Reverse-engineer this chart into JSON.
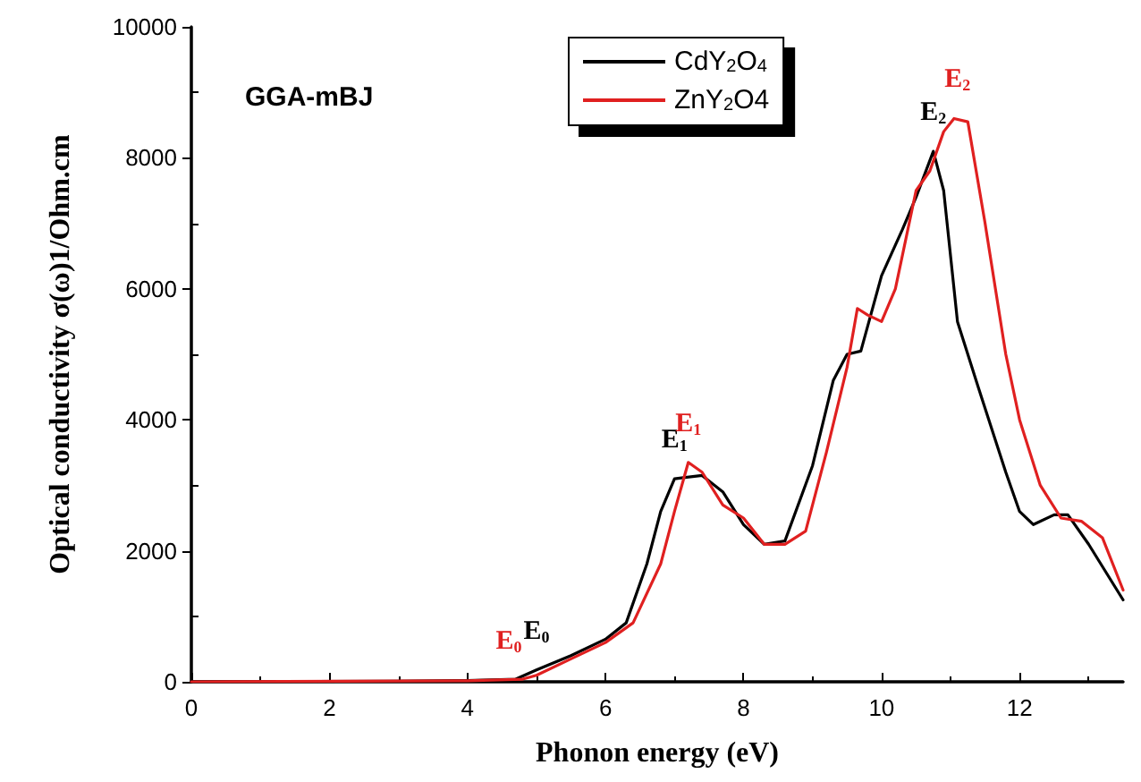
{
  "chart_data": {
    "type": "line",
    "xlabel": "Phonon energy (eV)",
    "ylabel": "Optical conductivity σ(ω)1/Ohm.cm",
    "xlim": [
      0,
      13.5
    ],
    "xticks": [
      0,
      2,
      4,
      6,
      8,
      10,
      12
    ],
    "ylim": [
      0,
      10000
    ],
    "yticks": [
      0,
      2000,
      4000,
      6000,
      8000,
      10000
    ],
    "grid": false,
    "legend": "top",
    "marker": "none",
    "line_style": "solid",
    "annotations": [
      "GGA-mBJ",
      {
        "text": "E$_{0}$",
        "x": 5.0,
        "y": 180
      },
      {
        "text": "E$_{0}$",
        "x": 4.6,
        "y": 33
      },
      {
        "text": "E$_{1}$",
        "x": 7.0,
        "y": 3100
      },
      {
        "text": "E$_{1}$",
        "x": 7.2,
        "y": 3350
      },
      {
        "text": "E$_{2}$",
        "x": 10.75,
        "y": 8100
      },
      {
        "text": "E$_{2}$",
        "x": 11.1,
        "y": 8600
      }
    ],
    "series": [
      {
        "name": "CdY$_{2}$O$_{4}$",
        "color": "#000000",
        "x": [
          0,
          3,
          4,
          4.7,
          5,
          5.5,
          6,
          6.3,
          6.6,
          6.8,
          7.0,
          7.4,
          7.7,
          8.0,
          8.3,
          8.6,
          9.0,
          9.3,
          9.5,
          9.7,
          10.0,
          10.3,
          10.5,
          10.75,
          10.9,
          11.1,
          11.4,
          11.8,
          12.0,
          12.2,
          12.5,
          12.7,
          13.0,
          13.5
        ],
        "values": [
          0,
          10,
          20,
          40,
          180,
          400,
          650,
          900,
          1800,
          2600,
          3100,
          3150,
          2900,
          2400,
          2100,
          2150,
          3300,
          4600,
          5000,
          5050,
          6200,
          6900,
          7400,
          8100,
          7500,
          5500,
          4500,
          3200,
          2600,
          2400,
          2550,
          2550,
          2100,
          1250
        ]
      },
      {
        "name": "ZnY$_{2}$O4",
        "color": "#e02020",
        "x": [
          0,
          4,
          4.8,
          5.0,
          5.5,
          6,
          6.4,
          6.8,
          7.0,
          7.2,
          7.4,
          7.7,
          8.0,
          8.3,
          8.6,
          8.9,
          9.2,
          9.5,
          9.65,
          9.8,
          10.0,
          10.2,
          10.5,
          10.7,
          10.9,
          11.05,
          11.25,
          11.5,
          11.8,
          12.0,
          12.3,
          12.6,
          12.9,
          13.2,
          13.5
        ],
        "values": [
          0,
          15,
          40,
          100,
          350,
          600,
          900,
          1800,
          2600,
          3350,
          3200,
          2700,
          2500,
          2100,
          2100,
          2300,
          3500,
          4800,
          5700,
          5600,
          5500,
          6000,
          7500,
          7800,
          8400,
          8600,
          8550,
          7000,
          5000,
          4000,
          3000,
          2500,
          2450,
          2200,
          1400
        ]
      }
    ]
  }
}
